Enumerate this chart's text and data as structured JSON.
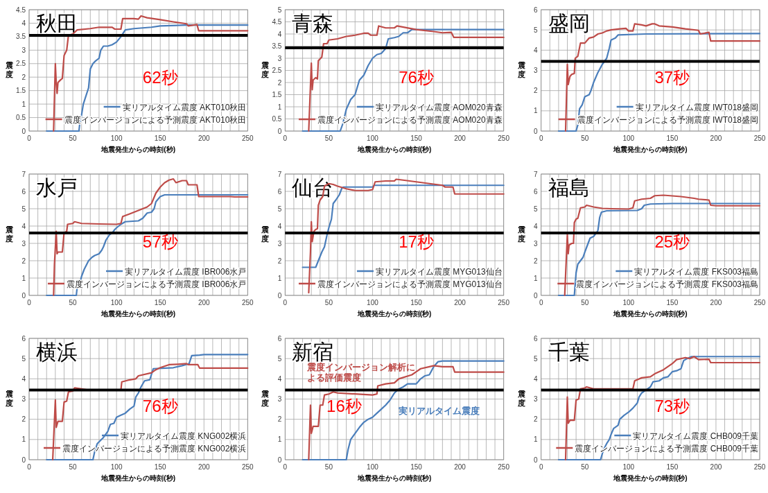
{
  "chart_data": [
    {
      "type": "line",
      "title": "秋田",
      "xlabel": "地震発生からの時刻(秒)",
      "ylabel": "震度",
      "xlim": [
        0,
        250
      ],
      "ylim": [
        0,
        4.5
      ],
      "xticks": [
        0,
        {
          "value": 10,
          "label": null
        },
        {
          "value": 20,
          "label": null
        },
        {
          "value": 30,
          "label": null
        },
        {
          "value": 40,
          "label": null
        },
        50,
        {
          "value": 60,
          "label": null
        },
        {
          "value": 70,
          "label": null
        },
        {
          "value": 80,
          "label": null
        },
        {
          "value": 90,
          "label": null
        },
        100,
        {
          "value": 110,
          "label": null
        },
        {
          "value": 120,
          "label": null
        },
        {
          "value": 130,
          "label": null
        },
        {
          "value": 140,
          "label": null
        },
        150,
        {
          "value": 160,
          "label": null
        },
        {
          "value": 170,
          "label": null
        },
        {
          "value": 180,
          "label": null
        },
        {
          "value": 190,
          "label": null
        },
        200,
        {
          "value": 210,
          "label": null
        },
        {
          "value": 220,
          "label": null
        },
        {
          "value": 230,
          "label": null
        },
        {
          "value": 240,
          "label": null
        },
        250
      ],
      "yticks": [
        0,
        0.5,
        1,
        1.5,
        2,
        2.5,
        3,
        3.5,
        4,
        4.5
      ],
      "grid": true,
      "legend": "bottom right",
      "annotations": [
        "62秒"
      ],
      "ref_lines": [
        {
          "axis": "y",
          "value": 3.55,
          "color": "#000000"
        }
      ],
      "series": [
        {
          "name": "実リアルタイム震度 AKT010秋田",
          "color": "#4a7ebb",
          "x": [
            20,
            57,
            58,
            60,
            62,
            65,
            68,
            70,
            73,
            76,
            80,
            82,
            85,
            90,
            95,
            100,
            105,
            110,
            120,
            140,
            150,
            180,
            250
          ],
          "values": [
            0,
            0,
            0.3,
            0.6,
            1.0,
            1.3,
            1.6,
            2.3,
            2.5,
            2.6,
            2.7,
            3.0,
            3.15,
            3.15,
            3.2,
            3.3,
            3.5,
            3.75,
            3.8,
            3.85,
            3.9,
            3.93,
            3.93
          ]
        },
        {
          "name": "震度インバージョンによる予測震度  AKT010秋田",
          "color": "#be4b48",
          "x": [
            28,
            30,
            31,
            32,
            33,
            36,
            38,
            40,
            43,
            45,
            50,
            55,
            70,
            80,
            95,
            98,
            105,
            107,
            120,
            125,
            128,
            135,
            150,
            165,
            180,
            182,
            192,
            194,
            250
          ],
          "values": [
            0,
            2.5,
            1.8,
            1.4,
            1.8,
            1.9,
            1.95,
            2.8,
            3.0,
            3.55,
            3.6,
            3.75,
            3.8,
            3.85,
            3.85,
            3.78,
            3.78,
            4.17,
            4.17,
            4.15,
            4.27,
            4.2,
            4.13,
            4.05,
            3.98,
            3.9,
            3.95,
            3.72,
            3.72
          ]
        }
      ]
    },
    {
      "type": "line",
      "title": "青森",
      "xlabel": "地震発生からの時刻(秒)",
      "ylabel": "震度",
      "xlim": [
        0,
        250
      ],
      "ylim": [
        0,
        5
      ],
      "xticks": [
        0,
        {
          "value": 10,
          "label": null
        },
        {
          "value": 20,
          "label": null
        },
        {
          "value": 30,
          "label": null
        },
        {
          "value": 40,
          "label": null
        },
        50,
        {
          "value": 60,
          "label": null
        },
        {
          "value": 70,
          "label": null
        },
        {
          "value": 80,
          "label": null
        },
        {
          "value": 90,
          "label": null
        },
        100,
        {
          "value": 110,
          "label": null
        },
        {
          "value": 120,
          "label": null
        },
        {
          "value": 130,
          "label": null
        },
        {
          "value": 140,
          "label": null
        },
        150,
        {
          "value": 160,
          "label": null
        },
        {
          "value": 170,
          "label": null
        },
        {
          "value": 180,
          "label": null
        },
        {
          "value": 190,
          "label": null
        },
        200,
        {
          "value": 210,
          "label": null
        },
        {
          "value": 220,
          "label": null
        },
        {
          "value": 230,
          "label": null
        },
        {
          "value": 240,
          "label": null
        },
        250
      ],
      "yticks": [
        0,
        0.5,
        1,
        1.5,
        2,
        2.5,
        3,
        3.5,
        4,
        4.5,
        5
      ],
      "grid": true,
      "legend": "bottom right",
      "annotations": [
        "76秒"
      ],
      "ref_lines": [
        {
          "axis": "y",
          "value": 3.43,
          "color": "#000000"
        }
      ],
      "series": [
        {
          "name": "実リアルタイム震度 AOM020青森",
          "color": "#4a7ebb",
          "x": [
            20,
            63,
            66,
            70,
            75,
            80,
            85,
            90,
            95,
            100,
            105,
            110,
            115,
            118,
            125,
            130,
            135,
            140,
            145,
            250
          ],
          "values": [
            0,
            0,
            0.3,
            0.9,
            1.3,
            1.5,
            2.1,
            2.3,
            2.7,
            3.0,
            3.15,
            3.2,
            3.4,
            3.8,
            3.85,
            3.9,
            4.05,
            4.05,
            4.18,
            4.18
          ]
        },
        {
          "name": "震度インバージョンによる予測震度  AOM020青森",
          "color": "#be4b48",
          "x": [
            27,
            30,
            31,
            32,
            35,
            37,
            38,
            42,
            44,
            48,
            50,
            60,
            70,
            80,
            90,
            95,
            98,
            105,
            107,
            115,
            125,
            128,
            150,
            170,
            180,
            190,
            193,
            250
          ],
          "values": [
            0,
            2.8,
            1.7,
            2.1,
            2.2,
            2.15,
            2.9,
            3.05,
            3.6,
            3.6,
            3.75,
            3.8,
            3.9,
            3.95,
            4.03,
            4.03,
            3.95,
            3.95,
            4.33,
            4.25,
            4.25,
            4.33,
            4.18,
            4.1,
            4.05,
            4.07,
            3.86,
            3.86
          ]
        }
      ]
    },
    {
      "type": "line",
      "title": "盛岡",
      "xlabel": "地震発生からの時刻(秒)",
      "ylabel": "震度",
      "xlim": [
        0,
        250
      ],
      "ylim": [
        0,
        6
      ],
      "xticks": [
        0,
        {
          "value": 10,
          "label": null
        },
        {
          "value": 20,
          "label": null
        },
        {
          "value": 30,
          "label": null
        },
        {
          "value": 40,
          "label": null
        },
        50,
        {
          "value": 60,
          "label": null
        },
        {
          "value": 70,
          "label": null
        },
        {
          "value": 80,
          "label": null
        },
        {
          "value": 90,
          "label": null
        },
        100,
        {
          "value": 110,
          "label": null
        },
        {
          "value": 120,
          "label": null
        },
        {
          "value": 130,
          "label": null
        },
        {
          "value": 140,
          "label": null
        },
        150,
        {
          "value": 160,
          "label": null
        },
        {
          "value": 170,
          "label": null
        },
        {
          "value": 180,
          "label": null
        },
        {
          "value": 190,
          "label": null
        },
        200,
        {
          "value": 210,
          "label": null
        },
        {
          "value": 220,
          "label": null
        },
        {
          "value": 230,
          "label": null
        },
        {
          "value": 240,
          "label": null
        },
        250
      ],
      "yticks": [
        0,
        1,
        2,
        3,
        4,
        5,
        6
      ],
      "grid": true,
      "legend": "bottom right",
      "annotations": [
        "37秒"
      ],
      "ref_lines": [
        {
          "axis": "y",
          "value": 3.45,
          "color": "#000000"
        }
      ],
      "series": [
        {
          "name": "実リアルタイム震度 IWT018盛岡",
          "color": "#4a7ebb",
          "x": [
            20,
            40,
            42,
            44,
            47,
            50,
            55,
            57,
            60,
            65,
            70,
            75,
            78,
            80,
            85,
            88,
            120,
            250
          ],
          "values": [
            0,
            0,
            0.3,
            1.1,
            1.3,
            1.7,
            1.8,
            2.0,
            2.4,
            2.9,
            3.3,
            3.6,
            4.1,
            4.5,
            4.6,
            4.75,
            4.8,
            4.82
          ]
        },
        {
          "name": "震度インバージョンによる予測震度  IWT018盛岡",
          "color": "#be4b48",
          "x": [
            28,
            30,
            31,
            33,
            35,
            38,
            39,
            42,
            45,
            50,
            55,
            60,
            65,
            70,
            75,
            80,
            90,
            97,
            100,
            105,
            107,
            115,
            120,
            127,
            130,
            135,
            150,
            165,
            180,
            182,
            192,
            194,
            250
          ],
          "values": [
            0,
            3.3,
            2.3,
            2.7,
            2.8,
            2.85,
            3.6,
            3.7,
            4.35,
            4.35,
            4.6,
            4.65,
            4.8,
            4.85,
            4.95,
            5.0,
            5.05,
            5.08,
            4.95,
            4.95,
            5.3,
            5.25,
            5.2,
            5.3,
            5.3,
            5.2,
            5.15,
            5.05,
            4.98,
            4.8,
            4.88,
            4.45,
            4.45
          ]
        }
      ]
    },
    {
      "type": "line",
      "title": "水戸",
      "xlabel": "地震発生からの時刻(秒)",
      "ylabel": "震度",
      "xlim": [
        0,
        250
      ],
      "ylim": [
        0,
        7
      ],
      "xticks": [
        0,
        {
          "value": 10,
          "label": null
        },
        {
          "value": 20,
          "label": null
        },
        {
          "value": 30,
          "label": null
        },
        {
          "value": 40,
          "label": null
        },
        50,
        {
          "value": 60,
          "label": null
        },
        {
          "value": 70,
          "label": null
        },
        {
          "value": 80,
          "label": null
        },
        {
          "value": 90,
          "label": null
        },
        100,
        {
          "value": 110,
          "label": null
        },
        {
          "value": 120,
          "label": null
        },
        {
          "value": 130,
          "label": null
        },
        {
          "value": 140,
          "label": null
        },
        150,
        {
          "value": 160,
          "label": null
        },
        {
          "value": 170,
          "label": null
        },
        {
          "value": 180,
          "label": null
        },
        {
          "value": 190,
          "label": null
        },
        200,
        {
          "value": 210,
          "label": null
        },
        {
          "value": 220,
          "label": null
        },
        {
          "value": 230,
          "label": null
        },
        {
          "value": 240,
          "label": null
        },
        250
      ],
      "yticks": [
        0,
        1,
        2,
        3,
        4,
        5,
        6,
        7
      ],
      "grid": true,
      "legend": "bottom right",
      "annotations": [
        "57秒"
      ],
      "ref_lines": [
        {
          "axis": "y",
          "value": 3.6,
          "color": "#000000"
        }
      ],
      "series": [
        {
          "name": "実リアルタイム震度 IBR006水戸",
          "color": "#4a7ebb",
          "x": [
            20,
            54,
            55,
            58,
            60,
            63,
            65,
            68,
            72,
            75,
            80,
            83,
            85,
            88,
            92,
            95,
            98,
            100,
            105,
            110,
            125,
            130,
            135,
            140,
            143,
            145,
            150,
            155,
            250
          ],
          "values": [
            0,
            0,
            0.5,
            0.7,
            1.1,
            1.5,
            1.7,
            2.0,
            2.2,
            2.3,
            2.4,
            2.6,
            2.8,
            3.2,
            3.5,
            3.6,
            3.8,
            3.9,
            4.1,
            4.25,
            4.3,
            4.45,
            4.75,
            4.8,
            5.0,
            5.4,
            5.7,
            5.8,
            5.8
          ]
        },
        {
          "name": "震度インバージョンによる予測震度  IBR006水戸",
          "color": "#be4b48",
          "x": [
            28,
            29,
            31,
            32,
            33,
            38,
            40,
            43,
            44,
            50,
            52,
            60,
            80,
            100,
            105,
            107,
            115,
            120,
            130,
            135,
            140,
            145,
            150,
            155,
            160,
            165,
            168,
            175,
            180,
            182,
            192,
            194,
            230,
            235,
            250
          ],
          "values": [
            0,
            1.8,
            3.7,
            2.4,
            2.5,
            2.5,
            3.6,
            3.7,
            4.1,
            4.15,
            4.25,
            4.15,
            4.12,
            4.1,
            4.15,
            4.55,
            4.7,
            4.8,
            5.0,
            5.1,
            5.3,
            5.9,
            6.25,
            6.5,
            6.65,
            6.72,
            6.5,
            6.62,
            6.62,
            6.38,
            6.38,
            5.7,
            5.7,
            5.68,
            5.68
          ]
        }
      ]
    },
    {
      "type": "line",
      "title": "仙台",
      "xlabel": "地震発生からの時刻(秒)",
      "ylabel": "震度",
      "xlim": [
        0,
        250
      ],
      "ylim": [
        0,
        7
      ],
      "xticks": [
        0,
        {
          "value": 10,
          "label": null
        },
        {
          "value": 20,
          "label": null
        },
        {
          "value": 30,
          "label": null
        },
        {
          "value": 40,
          "label": null
        },
        50,
        {
          "value": 60,
          "label": null
        },
        {
          "value": 70,
          "label": null
        },
        {
          "value": 80,
          "label": null
        },
        {
          "value": 90,
          "label": null
        },
        100,
        {
          "value": 110,
          "label": null
        },
        {
          "value": 120,
          "label": null
        },
        {
          "value": 130,
          "label": null
        },
        {
          "value": 140,
          "label": null
        },
        150,
        {
          "value": 160,
          "label": null
        },
        {
          "value": 170,
          "label": null
        },
        {
          "value": 180,
          "label": null
        },
        {
          "value": 190,
          "label": null
        },
        200,
        {
          "value": 210,
          "label": null
        },
        {
          "value": 220,
          "label": null
        },
        {
          "value": 230,
          "label": null
        },
        {
          "value": 240,
          "label": null
        },
        250
      ],
      "yticks": [
        0,
        1,
        2,
        3,
        4,
        5,
        6,
        7
      ],
      "grid": true,
      "legend": "bottom right",
      "annotations": [
        "17秒"
      ],
      "ref_lines": [
        {
          "axis": "y",
          "value": 3.6,
          "color": "#000000"
        }
      ],
      "series": [
        {
          "name": "実リアルタイム震度 MYG013仙台",
          "color": "#4a7ebb",
          "x": [
            20,
            35,
            38,
            42,
            45,
            48,
            50,
            53,
            55,
            58,
            62,
            65,
            67,
            100,
            102,
            250
          ],
          "values": [
            1.62,
            1.62,
            2.0,
            2.5,
            2.8,
            3.5,
            3.9,
            4.4,
            5.3,
            5.5,
            5.8,
            6.2,
            6.25,
            6.25,
            6.35,
            6.35
          ]
        },
        {
          "name": "震度インバージョンによる予測震度  MYG013仙台",
          "color": "#be4b48",
          "x": [
            27,
            29,
            30,
            31,
            33,
            35,
            37,
            38,
            40,
            43,
            45,
            50,
            55,
            60,
            70,
            80,
            95,
            100,
            103,
            115,
            125,
            127,
            135,
            150,
            165,
            180,
            183,
            192,
            194,
            250
          ],
          "values": [
            0.15,
            2.5,
            4.25,
            3.1,
            3.7,
            3.8,
            3.85,
            5.2,
            5.5,
            5.7,
            6.3,
            6.45,
            6.4,
            6.3,
            6.15,
            6.05,
            6.05,
            6.1,
            6.55,
            6.6,
            6.6,
            6.7,
            6.65,
            6.55,
            6.45,
            6.35,
            6.25,
            6.25,
            5.85,
            5.85
          ]
        }
      ]
    },
    {
      "type": "line",
      "title": "福島",
      "xlabel": "地震発生からの時刻(秒)",
      "ylabel": "震度",
      "xlim": [
        0,
        250
      ],
      "ylim": [
        0,
        7
      ],
      "xticks": [
        0,
        {
          "value": 10,
          "label": null
        },
        {
          "value": 20,
          "label": null
        },
        {
          "value": 30,
          "label": null
        },
        {
          "value": 40,
          "label": null
        },
        50,
        {
          "value": 60,
          "label": null
        },
        {
          "value": 70,
          "label": null
        },
        {
          "value": 80,
          "label": null
        },
        {
          "value": 90,
          "label": null
        },
        100,
        {
          "value": 110,
          "label": null
        },
        {
          "value": 120,
          "label": null
        },
        {
          "value": 130,
          "label": null
        },
        {
          "value": 140,
          "label": null
        },
        150,
        {
          "value": 160,
          "label": null
        },
        {
          "value": 170,
          "label": null
        },
        {
          "value": 180,
          "label": null
        },
        {
          "value": 190,
          "label": null
        },
        200,
        {
          "value": 210,
          "label": null
        },
        {
          "value": 220,
          "label": null
        },
        {
          "value": 230,
          "label": null
        },
        {
          "value": 240,
          "label": null
        },
        250
      ],
      "yticks": [
        0,
        1,
        2,
        3,
        4,
        5,
        6,
        7
      ],
      "grid": true,
      "legend": "bottom right",
      "annotations": [
        "25秒"
      ],
      "ref_lines": [
        {
          "axis": "y",
          "value": 3.6,
          "color": "#000000"
        }
      ],
      "series": [
        {
          "name": "実リアルタイム震度 FKS003福島",
          "color": "#4a7ebb",
          "x": [
            20,
            38,
            40,
            42,
            45,
            48,
            50,
            53,
            56,
            60,
            63,
            65,
            67,
            69,
            75,
            110,
            115,
            118,
            125,
            150,
            250
          ],
          "values": [
            0,
            0,
            1.3,
            1.8,
            2.0,
            2.2,
            2.5,
            2.9,
            3.3,
            3.4,
            3.6,
            3.75,
            4.5,
            4.8,
            4.88,
            4.9,
            5.0,
            5.2,
            5.27,
            5.3,
            5.3
          ]
        },
        {
          "name": "震度インバージョンによる予測震度  FKS003福島",
          "color": "#be4b48",
          "x": [
            27,
            30,
            31,
            32,
            35,
            37,
            38,
            40,
            42,
            45,
            50,
            52,
            60,
            70,
            80,
            100,
            105,
            107,
            115,
            125,
            130,
            140,
            160,
            175,
            180,
            192,
            194,
            200,
            250
          ],
          "values": [
            0,
            3.5,
            2.4,
            2.9,
            3.0,
            3.0,
            4.2,
            4.4,
            4.45,
            5.05,
            5.1,
            5.2,
            5.1,
            5.02,
            5.0,
            4.98,
            5.05,
            5.45,
            5.55,
            5.6,
            5.75,
            5.78,
            5.7,
            5.6,
            5.55,
            5.5,
            5.2,
            5.17,
            5.17
          ]
        }
      ]
    },
    {
      "type": "line",
      "title": "横浜",
      "xlabel": "地震発生からの時刻(秒)",
      "ylabel": "震度",
      "xlim": [
        0,
        250
      ],
      "ylim": [
        0,
        6
      ],
      "xticks": [
        0,
        {
          "value": 10,
          "label": null
        },
        {
          "value": 20,
          "label": null
        },
        {
          "value": 30,
          "label": null
        },
        {
          "value": 40,
          "label": null
        },
        50,
        {
          "value": 60,
          "label": null
        },
        {
          "value": 70,
          "label": null
        },
        {
          "value": 80,
          "label": null
        },
        {
          "value": 90,
          "label": null
        },
        100,
        {
          "value": 110,
          "label": null
        },
        {
          "value": 120,
          "label": null
        },
        {
          "value": 130,
          "label": null
        },
        {
          "value": 140,
          "label": null
        },
        150,
        {
          "value": 160,
          "label": null
        },
        {
          "value": 170,
          "label": null
        },
        {
          "value": 180,
          "label": null
        },
        {
          "value": 190,
          "label": null
        },
        200,
        {
          "value": 210,
          "label": null
        },
        {
          "value": 220,
          "label": null
        },
        {
          "value": 230,
          "label": null
        },
        {
          "value": 240,
          "label": null
        },
        250
      ],
      "yticks": [
        0,
        1,
        2,
        3,
        4,
        5,
        6
      ],
      "grid": true,
      "legend": "bottom right",
      "annotations": [
        "76秒"
      ],
      "ref_lines": [
        {
          "axis": "y",
          "value": 3.45,
          "color": "#000000"
        }
      ],
      "series": [
        {
          "name": "実リアルタイム震度 KNG002横浜",
          "color": "#4a7ebb",
          "x": [
            20,
            73,
            75,
            78,
            85,
            90,
            93,
            97,
            100,
            105,
            110,
            115,
            120,
            122,
            125,
            128,
            132,
            138,
            142,
            165,
            175,
            183,
            186,
            195,
            200,
            250
          ],
          "values": [
            0,
            0,
            0.4,
            0.8,
            1.1,
            1.4,
            1.75,
            1.8,
            2.1,
            2.2,
            2.3,
            2.5,
            2.65,
            3.1,
            3.3,
            3.6,
            3.9,
            3.95,
            4.5,
            4.55,
            4.65,
            4.75,
            5.15,
            5.17,
            5.2,
            5.2
          ]
        },
        {
          "name": "震度インバージョンによる予測震度  KNG002横浜",
          "color": "#be4b48",
          "x": [
            27,
            30,
            31,
            33,
            38,
            40,
            43,
            45,
            50,
            52,
            60,
            67,
            105,
            106,
            115,
            122,
            125,
            140,
            145,
            150,
            160,
            170,
            180,
            182,
            193,
            195,
            250
          ],
          "values": [
            0,
            2.95,
            1.6,
            1.9,
            1.9,
            2.85,
            2.9,
            3.35,
            3.4,
            3.55,
            3.5,
            3.45,
            3.45,
            3.85,
            3.95,
            4.0,
            4.15,
            4.3,
            4.45,
            4.55,
            4.7,
            4.72,
            4.75,
            4.7,
            4.7,
            4.53,
            4.53
          ]
        }
      ]
    },
    {
      "type": "line",
      "title": "新宿",
      "xlabel": "地震発生からの時刻(秒)",
      "ylabel": "震度",
      "xlim": [
        0,
        250
      ],
      "ylim": [
        0,
        6
      ],
      "xticks": [
        0,
        {
          "value": 10,
          "label": null
        },
        {
          "value": 20,
          "label": null
        },
        {
          "value": 30,
          "label": null
        },
        {
          "value": 40,
          "label": null
        },
        50,
        {
          "value": 60,
          "label": null
        },
        {
          "value": 70,
          "label": null
        },
        {
          "value": 80,
          "label": null
        },
        {
          "value": 90,
          "label": null
        },
        100,
        {
          "value": 110,
          "label": null
        },
        {
          "value": 120,
          "label": null
        },
        {
          "value": 130,
          "label": null
        },
        {
          "value": 140,
          "label": null
        },
        150,
        {
          "value": 160,
          "label": null
        },
        {
          "value": 170,
          "label": null
        },
        {
          "value": 180,
          "label": null
        },
        {
          "value": 190,
          "label": null
        },
        200,
        {
          "value": 210,
          "label": null
        },
        {
          "value": 220,
          "label": null
        },
        {
          "value": 230,
          "label": null
        },
        {
          "value": 240,
          "label": null
        },
        250
      ],
      "yticks": [
        0,
        1,
        2,
        3,
        4,
        5,
        6
      ],
      "grid": true,
      "legend": false,
      "annotations": [
        "16秒"
      ],
      "ref_lines": [
        {
          "axis": "y",
          "value": 3.45,
          "color": "#000000"
        }
      ],
      "series": [
        {
          "name": "実リアルタイム震度",
          "color": "#4a7ebb",
          "x": [
            20,
            70,
            72,
            75,
            80,
            85,
            90,
            95,
            100,
            105,
            110,
            115,
            120,
            125,
            130,
            135,
            140,
            150,
            155,
            160,
            165,
            170,
            175,
            180,
            250
          ],
          "values": [
            0,
            0,
            0.5,
            1.0,
            1.3,
            1.6,
            1.85,
            2.0,
            2.1,
            2.3,
            2.5,
            2.7,
            2.95,
            3.3,
            3.5,
            3.6,
            3.75,
            3.75,
            4.0,
            4.15,
            4.2,
            4.6,
            4.85,
            4.88,
            4.88
          ]
        },
        {
          "name": "震度インバージョン解析による評価震度",
          "color": "#be4b48",
          "x": [
            27,
            29,
            30,
            32,
            38,
            40,
            43,
            45,
            50,
            55,
            60,
            80,
            100,
            105,
            106,
            115,
            125,
            130,
            145,
            150,
            155,
            165,
            170,
            180,
            192,
            194,
            250
          ],
          "values": [
            0,
            2.7,
            1.3,
            1.65,
            1.65,
            2.7,
            2.7,
            3.2,
            3.25,
            3.35,
            3.3,
            3.25,
            3.2,
            3.25,
            3.65,
            3.75,
            3.8,
            4.0,
            4.2,
            4.35,
            4.5,
            4.6,
            4.65,
            4.6,
            4.6,
            4.33,
            4.33
          ]
        }
      ]
    },
    {
      "type": "line",
      "title": "千葉",
      "xlabel": "地震発生からの時刻(秒)",
      "ylabel": "震度",
      "xlim": [
        0,
        250
      ],
      "ylim": [
        0,
        6
      ],
      "xticks": [
        0,
        {
          "value": 10,
          "label": null
        },
        {
          "value": 20,
          "label": null
        },
        {
          "value": 30,
          "label": null
        },
        {
          "value": 40,
          "label": null
        },
        50,
        {
          "value": 60,
          "label": null
        },
        {
          "value": 70,
          "label": null
        },
        {
          "value": 80,
          "label": null
        },
        {
          "value": 90,
          "label": null
        },
        100,
        {
          "value": 110,
          "label": null
        },
        {
          "value": 120,
          "label": null
        },
        {
          "value": 130,
          "label": null
        },
        {
          "value": 140,
          "label": null
        },
        150,
        {
          "value": 160,
          "label": null
        },
        {
          "value": 170,
          "label": null
        },
        {
          "value": 180,
          "label": null
        },
        {
          "value": 190,
          "label": null
        },
        200,
        {
          "value": 210,
          "label": null
        },
        {
          "value": 220,
          "label": null
        },
        {
          "value": 230,
          "label": null
        },
        {
          "value": 240,
          "label": null
        },
        250
      ],
      "yticks": [
        0,
        1,
        2,
        3,
        4,
        5,
        6
      ],
      "grid": true,
      "legend": "bottom right",
      "annotations": [
        "73秒"
      ],
      "ref_lines": [
        {
          "axis": "y",
          "value": 3.45,
          "color": "#000000"
        }
      ],
      "series": [
        {
          "name": "実リアルタイム震度 CHB009千葉",
          "color": "#4a7ebb",
          "x": [
            20,
            68,
            70,
            72,
            75,
            78,
            80,
            83,
            88,
            90,
            95,
            100,
            105,
            110,
            112,
            115,
            120,
            125,
            128,
            135,
            140,
            145,
            150,
            155,
            160,
            163,
            167,
            172,
            250
          ],
          "values": [
            0,
            0,
            0.3,
            0.55,
            0.8,
            1.0,
            1.25,
            1.55,
            1.7,
            2.0,
            2.2,
            2.35,
            2.55,
            2.8,
            3.1,
            3.3,
            3.45,
            3.6,
            3.85,
            3.9,
            4.05,
            4.1,
            4.35,
            4.4,
            4.5,
            4.9,
            5.0,
            5.1,
            5.1
          ]
        },
        {
          "name": "震度インバージョンによる予測震度  CHB009千葉",
          "color": "#be4b48",
          "x": [
            28,
            30,
            31,
            33,
            38,
            40,
            43,
            45,
            50,
            52,
            60,
            80,
            105,
            107,
            115,
            125,
            130,
            140,
            150,
            155,
            165,
            170,
            175,
            180,
            192,
            194,
            250
          ],
          "values": [
            0,
            3.1,
            1.8,
            1.95,
            1.95,
            2.95,
            3.0,
            3.5,
            3.55,
            3.6,
            3.5,
            3.5,
            3.5,
            3.9,
            4.05,
            4.1,
            4.25,
            4.45,
            4.75,
            4.95,
            5.05,
            5.0,
            5.1,
            4.95,
            4.97,
            4.8,
            4.8
          ]
        }
      ]
    }
  ]
}
